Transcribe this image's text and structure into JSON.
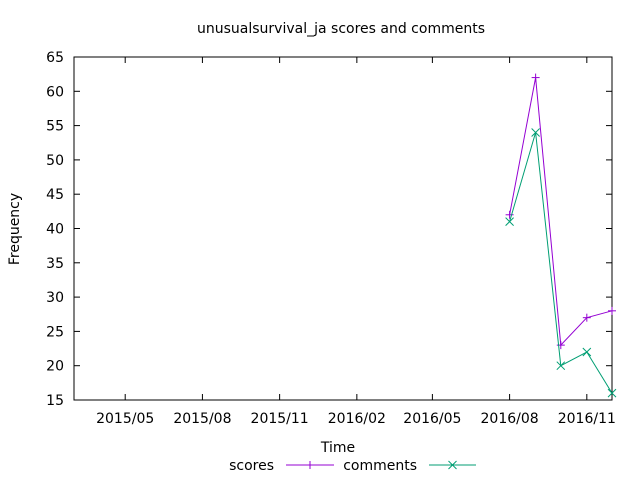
{
  "chart_data": {
    "type": "line",
    "title": "unusualsurvival_ja scores and comments",
    "xlabel": "Time",
    "ylabel": "Frequency",
    "ylim": [
      15,
      65
    ],
    "yticks": [
      15,
      20,
      25,
      30,
      35,
      40,
      45,
      50,
      55,
      60,
      65
    ],
    "xlim": [
      "2015-03-01",
      "2016-12-01"
    ],
    "xticks": [
      {
        "date": "2015-05-01",
        "label": "2015/05"
      },
      {
        "date": "2015-08-01",
        "label": "2015/08"
      },
      {
        "date": "2015-11-01",
        "label": "2015/11"
      },
      {
        "date": "2016-02-01",
        "label": "2016/02"
      },
      {
        "date": "2016-05-01",
        "label": "2016/05"
      },
      {
        "date": "2016-08-01",
        "label": "2016/08"
      },
      {
        "date": "2016-11-01",
        "label": "2016/11"
      }
    ],
    "grid": false,
    "legend": "bottom-center",
    "x": [
      "2016-08-01",
      "2016-09-01",
      "2016-10-01",
      "2016-11-01",
      "2016-12-01"
    ],
    "series": [
      {
        "name": "scores",
        "values": [
          42,
          62,
          23,
          27,
          28
        ],
        "color": "#9400d3",
        "marker": "plus"
      },
      {
        "name": "comments",
        "values": [
          41,
          54,
          20,
          22,
          16
        ],
        "color": "#009e73",
        "marker": "cross"
      }
    ]
  }
}
